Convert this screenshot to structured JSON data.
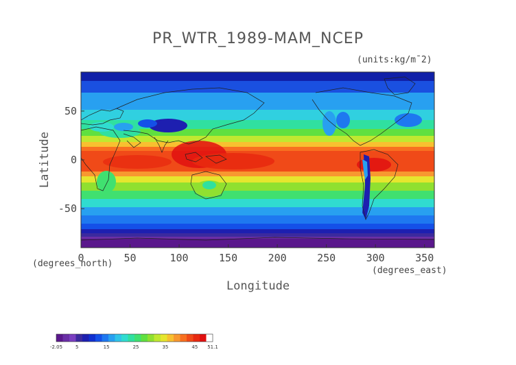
{
  "chart_data": {
    "type": "heatmap",
    "title": "PR_WTR_1989-MAM_NCEP",
    "units_label": "(units:kg/m¯2)",
    "xlabel": "Longitude",
    "ylabel": "Latitude",
    "x_unit_label": "(degrees_east)",
    "y_unit_label": "(degrees_north)",
    "xlim": [
      0,
      360
    ],
    "ylim": [
      -90,
      90
    ],
    "x_ticks": [
      0,
      50,
      100,
      150,
      200,
      250,
      300,
      350
    ],
    "y_ticks": [
      -50,
      0,
      50
    ],
    "colorbar_ticks": [
      "-2.05",
      "5",
      "15",
      "25",
      "35",
      "45",
      "51.1"
    ],
    "colorbar_range": [
      -2.05,
      51.1
    ],
    "colorbar_colors": [
      "#5a188c",
      "#6a2fa6",
      "#7a3ec0",
      "#3c2a9e",
      "#1d1fb0",
      "#1030d0",
      "#1450e8",
      "#1e78f0",
      "#28a0f0",
      "#30c4e8",
      "#30dcd0",
      "#30e0a0",
      "#40e070",
      "#60e040",
      "#90e030",
      "#c0e830",
      "#e6e62e",
      "#f8c030",
      "#f89830",
      "#f87020",
      "#f04a18",
      "#e82a10",
      "#e01010",
      "#ffffff"
    ],
    "field_summary": [
      {
        "lat_band": [
          60,
          90
        ],
        "approx_value": 5
      },
      {
        "lat_band": [
          30,
          60
        ],
        "approx_value": 15
      },
      {
        "lat_band": [
          10,
          30
        ],
        "approx_value": 30
      },
      {
        "lat_band": [
          -10,
          10
        ],
        "approx_value": 45
      },
      {
        "lat_band": [
          -30,
          -10
        ],
        "approx_value": 30
      },
      {
        "lat_band": [
          -60,
          -30
        ],
        "approx_value": 15
      },
      {
        "lat_band": [
          -90,
          -60
        ],
        "approx_value": 2
      }
    ]
  }
}
